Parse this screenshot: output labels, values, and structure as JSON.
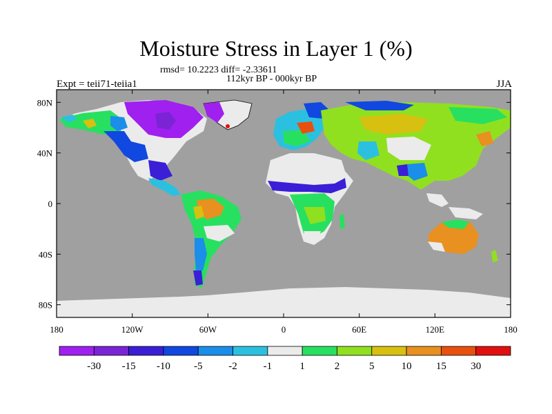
{
  "title": "Moisture Stress in Layer 1 (%)",
  "rmsd_line": "rmsd= 10.2223 diff= -2.33611",
  "period_line": "112kyr BP - 000kyr BP",
  "experiment": "Expt = teii71-teiia1",
  "season": "JJA",
  "map": {
    "projection": "cylindrical equidistant",
    "lon_range": [
      -180,
      180
    ],
    "lat_range": [
      -90,
      90
    ],
    "ocean_color": "#a0a0a0",
    "lat_ticks": [
      {
        "lat": 80,
        "label": "80N"
      },
      {
        "lat": 40,
        "label": "40N"
      },
      {
        "lat": 0,
        "label": "0"
      },
      {
        "lat": -40,
        "label": "40S"
      },
      {
        "lat": -80,
        "label": "80S"
      }
    ],
    "lon_ticks": [
      {
        "lon": -180,
        "label": "180"
      },
      {
        "lon": -120,
        "label": "120W"
      },
      {
        "lon": -60,
        "label": "60W"
      },
      {
        "lon": 0,
        "label": "0"
      },
      {
        "lon": 60,
        "label": "60E"
      },
      {
        "lon": 120,
        "label": "120E"
      },
      {
        "lon": 180,
        "label": "180"
      }
    ]
  },
  "colorbar": {
    "colors": [
      "#a020f0",
      "#7a24d6",
      "#3a1fd6",
      "#1048e0",
      "#1a8ee8",
      "#2cc0e0",
      "#ebebeb",
      "#28e060",
      "#90e020",
      "#d8c010",
      "#e89020",
      "#e85010",
      "#e01010"
    ],
    "labels": [
      "-30",
      "-15",
      "-10",
      "-5",
      "-2",
      "-1",
      "1",
      "2",
      "5",
      "10",
      "15",
      "30"
    ]
  },
  "chart_data": {
    "type": "heatmap",
    "title": "Moisture Stress in Layer 1 (%)",
    "levels": [
      -30,
      -15,
      -10,
      -5,
      -2,
      -1,
      1,
      2,
      5,
      10,
      15,
      30
    ],
    "x_range": [
      -180,
      180
    ],
    "y_range": [
      -90,
      90
    ],
    "regions": [
      {
        "lon": [
          -110,
          -75
        ],
        "lat": [
          50,
          80
        ],
        "level": "-30"
      },
      {
        "lon": [
          -90,
          -80
        ],
        "lat": [
          56,
          63
        ],
        "level": "-15"
      },
      {
        "lon": [
          -55,
          -20
        ],
        "lat": [
          62,
          83
        ],
        "level": "-1 to 1"
      },
      {
        "lon": [
          -165,
          -140
        ],
        "lat": [
          60,
          70
        ],
        "level": "2 to 5"
      },
      {
        "lon": [
          -125,
          -95
        ],
        "lat": [
          30,
          50
        ],
        "level": "-1 to 1"
      },
      {
        "lon": [
          -105,
          -85
        ],
        "lat": [
          28,
          40
        ],
        "level": "-5"
      },
      {
        "lon": [
          -65,
          -45
        ],
        "lat": [
          -15,
          0
        ],
        "level": "5 to 10"
      },
      {
        "lon": [
          -60,
          -40
        ],
        "lat": [
          -30,
          -15
        ],
        "level": "-1 to 1"
      },
      {
        "lon": [
          -20,
          35
        ],
        "lat": [
          15,
          30
        ],
        "level": "-1 to 1"
      },
      {
        "lon": [
          -15,
          35
        ],
        "lat": [
          8,
          15
        ],
        "level": "-15"
      },
      {
        "lon": [
          10,
          35
        ],
        "lat": [
          -20,
          0
        ],
        "level": "2 to 5"
      },
      {
        "lon": [
          20,
          55
        ],
        "lat": [
          50,
          70
        ],
        "level": "5 to 10"
      },
      {
        "lon": [
          60,
          100
        ],
        "lat": [
          40,
          55
        ],
        "level": "-1 to 1"
      },
      {
        "lon": [
          75,
          95
        ],
        "lat": [
          25,
          35
        ],
        "level": "-5"
      },
      {
        "lon": [
          115,
          140
        ],
        "lat": [
          -30,
          -18
        ],
        "level": "10 to 15"
      },
      {
        "lon": [
          -180,
          180
        ],
        "lat": [
          -90,
          -65
        ],
        "level": "-1 to 1"
      }
    ]
  }
}
